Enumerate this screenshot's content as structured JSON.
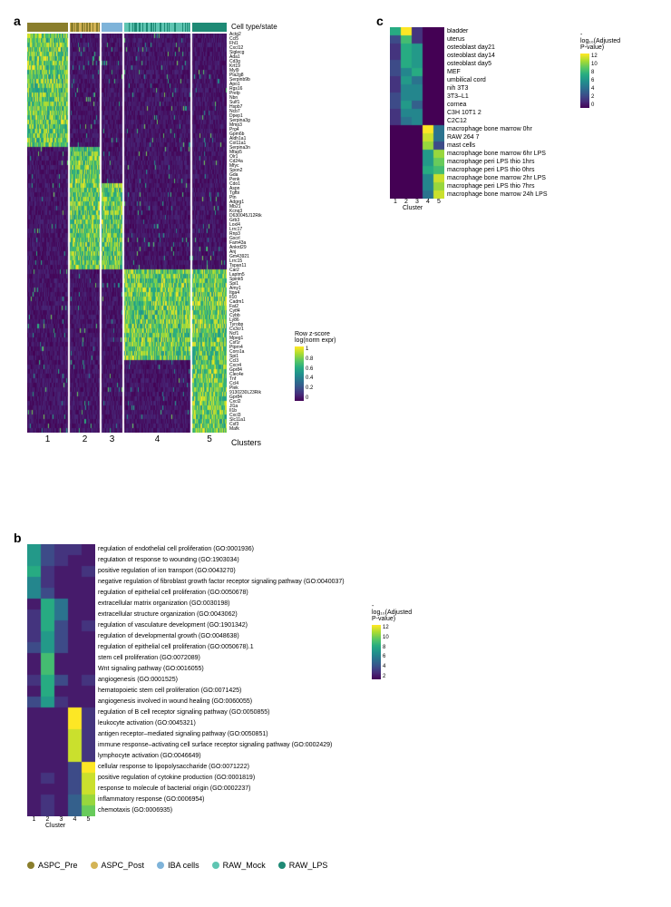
{
  "panel_labels": {
    "a": "a",
    "b": "b",
    "c": "c"
  },
  "cell_type_state_label": "Cell type/state",
  "clusters_label": "Clusters",
  "cluster_axis_label": "Cluster",
  "viridis": [
    "#440154",
    "#472b7a",
    "#3b518b",
    "#2c718e",
    "#21908d",
    "#27ad81",
    "#5cc863",
    "#aadc32",
    "#fde725"
  ],
  "panel_a": {
    "gene_labels": [
      "Actg2",
      "Ccl5",
      "Fhl1",
      "Cxcl12",
      "Siglecg",
      "Ada1",
      "Cd3g",
      "Krt19",
      "Myl9",
      "Pla2g8",
      "Serpinb9b",
      "Apo1",
      "Rgs16",
      "Prelp",
      "Nbn",
      "Sulf1",
      "Hspb7",
      "Ncb7",
      "Dpep1",
      "Serpina3g",
      "Mmp3",
      "Prg4",
      "Gpm6b",
      "Aldh1a1",
      "Col11a1",
      "Serpina3n",
      "Mfap5",
      "Olr1",
      "Cd24a",
      "Mfyc",
      "Spon2",
      "Gda",
      "Penk",
      "Cdo1",
      "Aspn",
      "Tgfbi",
      "Ptn",
      "Adgrg1",
      "Mb21",
      "Kcnq3",
      "D630045J12Rik",
      "Grb3",
      "Loxl4",
      "Lrrc17",
      "Rnp3",
      "Gxcrl",
      "Fam43a",
      "Ankrd29",
      "Anj",
      "Gm43921",
      "Lrrc15",
      "Tspan11",
      "Car2",
      "Laptm5",
      "Spink5",
      "Spi1",
      "Amy1",
      "Itga4",
      "Il10",
      "Cadm1",
      "Fat2",
      "Cytf4",
      "Cybb",
      "Ly86",
      "Tyrobp",
      "Cx3cr1",
      "Ncf1",
      "Mpeg1",
      "Csf1r",
      "Ptprn4",
      "Coro1a",
      "Spi1",
      "Ccl3",
      "Cxcr4",
      "Gpr84",
      "Clec4e",
      "Tnf",
      "Ccl4",
      "Plek",
      "9130230L23Rik",
      "Gpr84",
      "Cxcl2",
      "Jl1a",
      "Il1b",
      "Cxcl3",
      "Slc11a1",
      "Csf3",
      "Mafk"
    ],
    "cluster_bounds": [
      {
        "id": "1",
        "start": 0,
        "end": 45,
        "color_idx": 0
      },
      {
        "id": "2",
        "start": 47,
        "end": 80,
        "color_idx": 1
      },
      {
        "id": "3",
        "start": 82,
        "end": 105,
        "color_idx": 2
      },
      {
        "id": "4",
        "start": 107,
        "end": 180,
        "color_idx": 3
      },
      {
        "id": "5",
        "start": 182,
        "end": 220,
        "color_idx": 4
      }
    ],
    "cols": 220,
    "colorbar_title": "Row z-score\nlog(norm expr)",
    "colorbar_ticks": [
      "1",
      "0.8",
      "0.6",
      "0.4",
      "0.2",
      "0"
    ]
  },
  "panel_b": {
    "rows": [
      "regulation of endothelial cell proliferation (GO:0001936)",
      "regulation of response to wounding (GO:1903034)",
      "positive regulation of ion transport (GO:0043270)",
      "negative regulation of fibroblast growth factor receptor signaling pathway (GO:0040037)",
      "regulation of epithelial cell proliferation (GO:0050678)",
      "extracellular matrix organization (GO:0030198)",
      "extracellular structure organization (GO:0043062)",
      "regulation of vasculature development (GO:1901342)",
      "regulation of developmental growth (GO:0048638)",
      "regulation of epithelial cell proliferation (GO:0050678).1",
      "stem cell proliferation (GO:0072089)",
      "Wnt signaling pathway (GO:0016055)",
      "angiogenesis (GO:0001525)",
      "hematopoietic stem cell proliferation (GO:0071425)",
      "angiogenesis involved in wound healing (GO:0060055)",
      "regulation of B cell receptor signaling pathway (GO:0050855)",
      "leukocyte activation (GO:0045321)",
      "antigen receptor–mediated signaling pathway (GO:0050851)",
      "immune response–activating cell surface receptor signaling pathway (GO:0002429)",
      "lymphocyte activation (GO:0046649)",
      "cellular response to lipopolysaccharide (GO:0071222)",
      "positive regulation of cytokine production (GO:0001819)",
      "response to molecule of bacterial origin (GO:0002237)",
      "inflammatory response (GO:0006954)",
      "chemotaxis (GO:0006935)"
    ],
    "values": [
      [
        7,
        3,
        2,
        2,
        1
      ],
      [
        7,
        3,
        2,
        1,
        1
      ],
      [
        8,
        2,
        1,
        1,
        2
      ],
      [
        6,
        2,
        1,
        1,
        1
      ],
      [
        6,
        3,
        1,
        1,
        1
      ],
      [
        1,
        8,
        5,
        1,
        1
      ],
      [
        2,
        8,
        5,
        1,
        1
      ],
      [
        2,
        8,
        3,
        1,
        2
      ],
      [
        2,
        7,
        3,
        1,
        1
      ],
      [
        3,
        7,
        3,
        1,
        1
      ],
      [
        1,
        9,
        1,
        1,
        1
      ],
      [
        1,
        9,
        1,
        1,
        1
      ],
      [
        2,
        8,
        3,
        1,
        2
      ],
      [
        1,
        8,
        1,
        1,
        1
      ],
      [
        3,
        7,
        2,
        1,
        1
      ],
      [
        1,
        1,
        1,
        13,
        2
      ],
      [
        1,
        1,
        1,
        13,
        2
      ],
      [
        1,
        1,
        1,
        12,
        2
      ],
      [
        1,
        1,
        1,
        12,
        2
      ],
      [
        1,
        1,
        1,
        12,
        2
      ],
      [
        1,
        1,
        1,
        3,
        13
      ],
      [
        1,
        2,
        1,
        3,
        12
      ],
      [
        1,
        1,
        1,
        3,
        12
      ],
      [
        1,
        2,
        1,
        4,
        11
      ],
      [
        1,
        2,
        1,
        4,
        10
      ]
    ],
    "max": 13,
    "colorbar_title": "-log₁₀(Adjusted P-value)",
    "colorbar_ticks": [
      "12",
      "10",
      "8",
      "6",
      "4",
      "2"
    ],
    "x_labels": [
      "1",
      "2",
      "3",
      "4",
      "5"
    ]
  },
  "panel_c": {
    "rows": [
      "bladder",
      "uterus",
      "osteoblast day21",
      "osteoblast day14",
      "osteoblast day5",
      "MEF",
      "umbilical cord",
      "nih 3T3",
      "3T3–L1",
      "cornea",
      "C3H 10T1 2",
      "C2C12",
      "macrophage bone marrow 0hr",
      "RAW 264 7",
      "mast cells",
      "macrophage bone marrow 6hr LPS",
      "macrophage peri LPS thio 1hrs",
      "macrophage peri LPS thio 0hrs",
      "macrophage bone marrow 2hr LPS",
      "macrophage peri LPS thio 7hrs",
      "macrophage bone marrow 24h LPS"
    ],
    "values": [
      [
        8,
        13,
        2,
        0,
        0
      ],
      [
        3,
        9,
        2,
        0,
        0
      ],
      [
        2,
        8,
        7,
        0,
        0
      ],
      [
        2,
        8,
        7,
        0,
        0
      ],
      [
        3,
        8,
        7,
        0,
        0
      ],
      [
        3,
        6,
        8,
        0,
        0
      ],
      [
        2,
        7,
        5,
        0,
        0
      ],
      [
        2,
        6,
        6,
        0,
        0
      ],
      [
        3,
        6,
        6,
        0,
        0
      ],
      [
        3,
        7,
        4,
        0,
        0
      ],
      [
        2,
        6,
        6,
        0,
        0
      ],
      [
        2,
        5,
        6,
        0,
        0
      ],
      [
        0,
        0,
        0,
        13,
        5
      ],
      [
        0,
        0,
        0,
        12,
        5
      ],
      [
        0,
        0,
        0,
        11,
        3
      ],
      [
        0,
        0,
        0,
        7,
        11
      ],
      [
        0,
        0,
        0,
        7,
        10
      ],
      [
        0,
        0,
        0,
        8,
        9
      ],
      [
        0,
        0,
        0,
        6,
        12
      ],
      [
        0,
        0,
        0,
        6,
        11
      ],
      [
        0,
        0,
        0,
        5,
        12
      ]
    ],
    "max": 13,
    "colorbar_title": "-log₁₀(Adjusted P-value)",
    "colorbar_ticks": [
      "12",
      "10",
      "8",
      "6",
      "4",
      "2",
      "0"
    ],
    "x_labels": [
      "1",
      "2",
      "3",
      "4",
      "5"
    ]
  },
  "cell_type_legend": [
    {
      "label": "ASPC_Pre",
      "color": "#8a7e2c"
    },
    {
      "label": "ASPC_Post",
      "color": "#d4b456"
    },
    {
      "label": "IBA cells",
      "color": "#7eb3d9"
    },
    {
      "label": "RAW_Mock",
      "color": "#5fc5b2"
    },
    {
      "label": "RAW_LPS",
      "color": "#1e8a75"
    }
  ]
}
